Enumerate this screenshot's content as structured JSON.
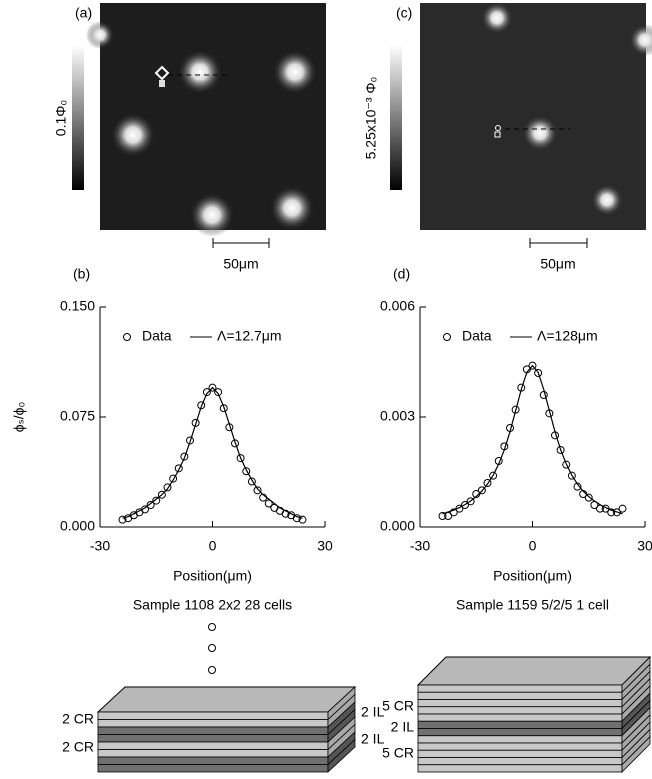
{
  "images": [
    {
      "label": "(a)",
      "colorbar_label": "0.1Φ₀",
      "scale_bar_label": "50μm"
    },
    {
      "label": "(c)",
      "colorbar_label": "5.25x10⁻³ Φ₀",
      "scale_bar_label": "50μm"
    }
  ],
  "chart_data": [
    {
      "type": "scatter",
      "panel_label": "(b)",
      "ylabel": "ϕₛ/ϕ₀",
      "xlabel": "Position(μm)",
      "title": "Sample 1108 2x2 28 cells",
      "xlim": [
        -30,
        30
      ],
      "xticks": [
        -30,
        0,
        30
      ],
      "ylim": [
        0,
        0.15
      ],
      "yticks": [
        {
          "value": 0,
          "label": "0.000"
        },
        {
          "value": 0.075,
          "label": "0.075"
        },
        {
          "value": 0.15,
          "label": "0.150"
        }
      ],
      "grid": false,
      "legend": "top",
      "x": [
        -24,
        -22.5,
        -21,
        -19.5,
        -18,
        -16.5,
        -15,
        -13.5,
        -12,
        -10.5,
        -9,
        -7.5,
        -6,
        -4.5,
        -3,
        -1.5,
        0,
        1.5,
        3,
        4.5,
        6,
        7.5,
        9,
        10.5,
        12,
        13.5,
        15,
        16.5,
        18,
        19.5,
        21,
        22.5,
        24
      ],
      "series": [
        {
          "name": "Data",
          "color": "#000000",
          "style": "markers",
          "values": [
            0.005,
            0.006,
            0.008,
            0.01,
            0.012,
            0.015,
            0.018,
            0.022,
            0.027,
            0.033,
            0.04,
            0.048,
            0.059,
            0.071,
            0.083,
            0.092,
            0.095,
            0.092,
            0.081,
            0.068,
            0.057,
            0.047,
            0.038,
            0.031,
            0.025,
            0.02,
            0.016,
            0.013,
            0.011,
            0.009,
            0.008,
            0.006,
            0.005
          ]
        },
        {
          "name": "Λ=12.7μm",
          "color": "#000000",
          "style": "line",
          "values": [
            0.006,
            0.007,
            0.009,
            0.011,
            0.013,
            0.016,
            0.019,
            0.022,
            0.026,
            0.032,
            0.039,
            0.047,
            0.058,
            0.07,
            0.082,
            0.091,
            0.095,
            0.091,
            0.082,
            0.07,
            0.058,
            0.047,
            0.039,
            0.032,
            0.026,
            0.022,
            0.019,
            0.016,
            0.013,
            0.011,
            0.009,
            0.007,
            0.006
          ]
        }
      ]
    },
    {
      "type": "scatter",
      "panel_label": "(d)",
      "xlabel": "Position(μm)",
      "title": "Sample 1159 5/2/5 1 cell",
      "xlim": [
        -30,
        30
      ],
      "xticks": [
        -30,
        0,
        30
      ],
      "ylim": [
        0,
        0.006
      ],
      "yticks": [
        {
          "value": 0,
          "label": "0.000"
        },
        {
          "value": 0.003,
          "label": "0.003"
        },
        {
          "value": 0.006,
          "label": "0.006"
        }
      ],
      "grid": false,
      "legend": "top",
      "x": [
        -24,
        -22.5,
        -21,
        -19.5,
        -18,
        -16.5,
        -15,
        -13.5,
        -12,
        -10.5,
        -9,
        -7.5,
        -6,
        -4.5,
        -3,
        -1.5,
        0,
        1.5,
        3,
        4.5,
        6,
        7.5,
        9,
        10.5,
        12,
        13.5,
        15,
        16.5,
        18,
        19.5,
        21,
        22.5,
        24
      ],
      "series": [
        {
          "name": "Data",
          "color": "#000000",
          "style": "markers",
          "values": [
            0.0003,
            0.0003,
            0.0004,
            0.0005,
            0.0006,
            0.0007,
            0.0009,
            0.001,
            0.0012,
            0.0014,
            0.0018,
            0.0022,
            0.0027,
            0.0032,
            0.0038,
            0.0043,
            0.0044,
            0.0042,
            0.0036,
            0.0031,
            0.0025,
            0.0021,
            0.0017,
            0.0014,
            0.0011,
            0.0009,
            0.0008,
            0.0006,
            0.0005,
            0.0005,
            0.0004,
            0.0004,
            0.0005
          ]
        },
        {
          "name": "Λ=128μm",
          "color": "#000000",
          "style": "line",
          "values": [
            0.00036,
            0.00041,
            0.00046,
            0.00053,
            0.00061,
            0.00071,
            0.00083,
            0.00098,
            0.00117,
            0.00141,
            0.00172,
            0.00211,
            0.0026,
            0.00317,
            0.00375,
            0.00422,
            0.0044,
            0.00422,
            0.00375,
            0.00317,
            0.0026,
            0.00211,
            0.00172,
            0.00141,
            0.00117,
            0.00098,
            0.00083,
            0.00071,
            0.00061,
            0.00053,
            0.00046,
            0.00041,
            0.00036
          ]
        }
      ]
    }
  ],
  "stacks": [
    {
      "left_labels": [
        "2 CR",
        "2 CR"
      ],
      "right_labels": [
        "2 IL",
        "2 IL"
      ]
    },
    {
      "left_labels": [
        "5 CR",
        "2 IL",
        "5 CR"
      ]
    }
  ]
}
